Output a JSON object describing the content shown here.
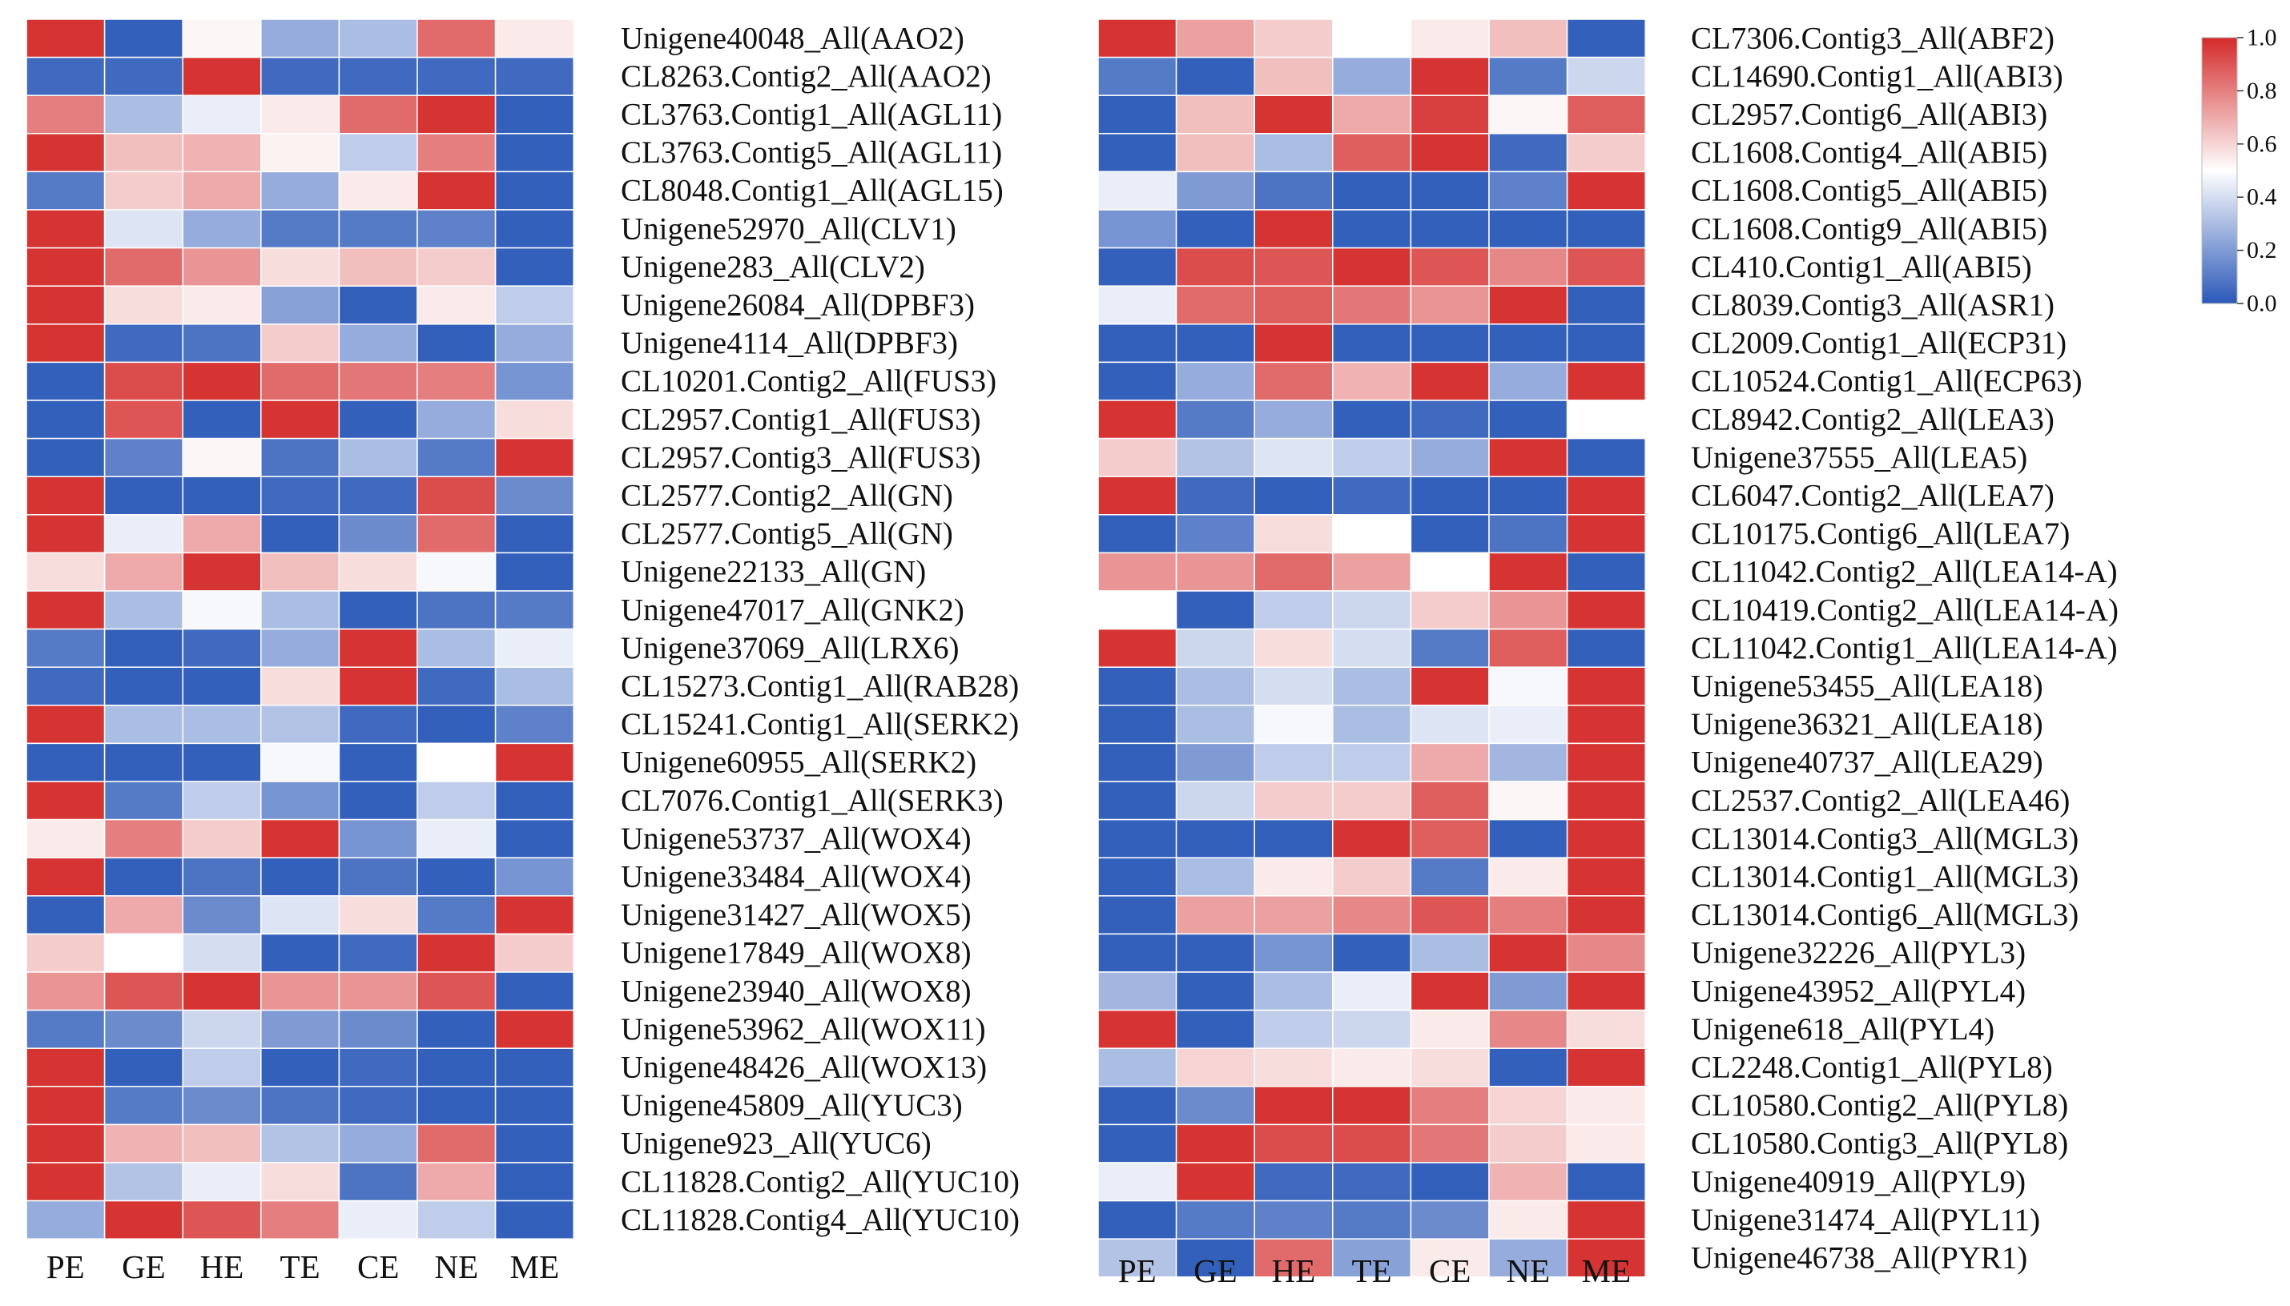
{
  "chart_data": {
    "type": "heatmap",
    "colormap": {
      "low": "#2b59b8",
      "mid": "#ffffff",
      "high": "#d42a2a",
      "range": [
        0.0,
        1.0
      ]
    },
    "colorbar": {
      "ticks": [
        "1.0",
        "0.8",
        "0.6",
        "0.4",
        "0.2",
        "0.0"
      ],
      "tick_values": [
        1.0,
        0.8,
        0.6,
        0.4,
        0.2,
        0.0
      ]
    },
    "panels": [
      {
        "name": "left",
        "columns": [
          "PE",
          "GE",
          "HE",
          "TE",
          "CE",
          "NE",
          "ME"
        ],
        "rows": [
          {
            "gene": "Unigene40048_All(AAO2)",
            "values": [
              0.98,
              0.02,
              0.52,
              0.25,
              0.3,
              0.85,
              0.55
            ]
          },
          {
            "gene": "CL8263.Contig2_All(AAO2)",
            "values": [
              0.05,
              0.05,
              0.98,
              0.05,
              0.05,
              0.05,
              0.05
            ]
          },
          {
            "gene": "CL3763.Contig1_All(AGL11)",
            "values": [
              0.8,
              0.3,
              0.45,
              0.55,
              0.85,
              0.98,
              0.02
            ]
          },
          {
            "gene": "CL3763.Contig5_All(AGL11)",
            "values": [
              0.98,
              0.65,
              0.68,
              0.53,
              0.35,
              0.8,
              0.02
            ]
          },
          {
            "gene": "CL8048.Contig1_All(AGL15)",
            "values": [
              0.1,
              0.62,
              0.7,
              0.25,
              0.55,
              0.98,
              0.02
            ]
          },
          {
            "gene": "Unigene52970_All(CLV1)",
            "values": [
              0.98,
              0.42,
              0.25,
              0.1,
              0.1,
              0.12,
              0.02
            ]
          },
          {
            "gene": "Unigene283_All(CLV2)",
            "values": [
              0.98,
              0.85,
              0.75,
              0.58,
              0.65,
              0.62,
              0.02
            ]
          },
          {
            "gene": "Unigene26084_All(DPBF3)",
            "values": [
              0.98,
              0.58,
              0.55,
              0.22,
              0.02,
              0.55,
              0.35
            ]
          },
          {
            "gene": "Unigene4114_All(DPBF3)",
            "values": [
              0.98,
              0.05,
              0.08,
              0.62,
              0.25,
              0.02,
              0.25
            ]
          },
          {
            "gene": "CL10201.Contig2_All(FUS3)",
            "values": [
              0.02,
              0.92,
              0.98,
              0.85,
              0.82,
              0.8,
              0.18
            ]
          },
          {
            "gene": "CL2957.Contig1_All(FUS3)",
            "values": [
              0.02,
              0.9,
              0.02,
              0.98,
              0.02,
              0.25,
              0.58
            ]
          },
          {
            "gene": "CL2957.Contig3_All(FUS3)",
            "values": [
              0.02,
              0.12,
              0.52,
              0.08,
              0.3,
              0.1,
              0.98
            ]
          },
          {
            "gene": "CL2577.Contig2_All(GN)",
            "values": [
              0.98,
              0.02,
              0.02,
              0.05,
              0.05,
              0.92,
              0.15
            ]
          },
          {
            "gene": "CL2577.Contig5_All(GN)",
            "values": [
              0.98,
              0.45,
              0.7,
              0.02,
              0.15,
              0.85,
              0.02
            ]
          },
          {
            "gene": "Unigene22133_All(GN)",
            "values": [
              0.58,
              0.7,
              0.98,
              0.65,
              0.58,
              0.48,
              0.02
            ]
          },
          {
            "gene": "Unigene47017_All(GNK2)",
            "values": [
              0.98,
              0.3,
              0.48,
              0.3,
              0.02,
              0.08,
              0.1
            ]
          },
          {
            "gene": "Unigene37069_All(LRX6)",
            "values": [
              0.1,
              0.02,
              0.05,
              0.25,
              0.98,
              0.3,
              0.45
            ]
          },
          {
            "gene": "CL15273.Contig1_All(RAB28)",
            "values": [
              0.05,
              0.02,
              0.02,
              0.58,
              0.98,
              0.05,
              0.3
            ]
          },
          {
            "gene": "CL15241.Contig1_All(SERK2)",
            "values": [
              0.98,
              0.3,
              0.3,
              0.32,
              0.05,
              0.02,
              0.12
            ]
          },
          {
            "gene": "Unigene60955_All(SERK2)",
            "values": [
              0.02,
              0.02,
              0.02,
              0.48,
              0.02,
              0.5,
              0.98
            ]
          },
          {
            "gene": "CL7076.Contig1_All(SERK3)",
            "values": [
              0.98,
              0.1,
              0.35,
              0.18,
              0.02,
              0.35,
              0.02
            ]
          },
          {
            "gene": "Unigene53737_All(WOX4)",
            "values": [
              0.55,
              0.8,
              0.62,
              0.98,
              0.18,
              0.45,
              0.02
            ]
          },
          {
            "gene": "Unigene33484_All(WOX4)",
            "values": [
              0.98,
              0.02,
              0.08,
              0.02,
              0.08,
              0.02,
              0.18
            ]
          },
          {
            "gene": "Unigene31427_All(WOX5)",
            "values": [
              0.02,
              0.7,
              0.15,
              0.42,
              0.58,
              0.1,
              0.98
            ]
          },
          {
            "gene": "Unigene17849_All(WOX8)",
            "values": [
              0.62,
              0.5,
              0.4,
              0.02,
              0.05,
              0.98,
              0.62
            ]
          },
          {
            "gene": "Unigene23940_All(WOX8)",
            "values": [
              0.75,
              0.9,
              0.98,
              0.75,
              0.75,
              0.9,
              0.02
            ]
          },
          {
            "gene": "Unigene53962_All(WOX11)",
            "values": [
              0.1,
              0.15,
              0.38,
              0.2,
              0.15,
              0.02,
              0.98
            ]
          },
          {
            "gene": "Unigene48426_All(WOX13)",
            "values": [
              0.98,
              0.02,
              0.35,
              0.02,
              0.05,
              0.02,
              0.02
            ]
          },
          {
            "gene": "Unigene45809_All(YUC3)",
            "values": [
              0.98,
              0.1,
              0.15,
              0.08,
              0.05,
              0.02,
              0.02
            ]
          },
          {
            "gene": "Unigene923_All(YUC6)",
            "values": [
              0.98,
              0.68,
              0.65,
              0.32,
              0.25,
              0.85,
              0.02
            ]
          },
          {
            "gene": "CL11828.Contig2_All(YUC10)",
            "values": [
              0.98,
              0.32,
              0.45,
              0.58,
              0.08,
              0.7,
              0.02
            ]
          },
          {
            "gene": "CL11828.Contig4_All(YUC10)",
            "values": [
              0.25,
              0.98,
              0.9,
              0.8,
              0.45,
              0.35,
              0.02
            ]
          }
        ]
      },
      {
        "name": "right",
        "columns": [
          "PE",
          "GE",
          "HE",
          "TE",
          "CE",
          "NE",
          "ME"
        ],
        "rows": [
          {
            "gene": "CL7306.Contig3_All(ABF2)",
            "values": [
              0.98,
              0.72,
              0.62,
              0.5,
              0.55,
              0.65,
              0.02
            ]
          },
          {
            "gene": "CL14690.Contig1_All(ABI3)",
            "values": [
              0.1,
              0.02,
              0.65,
              0.25,
              0.98,
              0.1,
              0.38
            ]
          },
          {
            "gene": "CL2957.Contig6_All(ABI3)",
            "values": [
              0.02,
              0.65,
              0.98,
              0.7,
              0.95,
              0.52,
              0.88
            ]
          },
          {
            "gene": "CL1608.Contig4_All(ABI5)",
            "values": [
              0.02,
              0.65,
              0.3,
              0.88,
              0.98,
              0.05,
              0.62
            ]
          },
          {
            "gene": "CL1608.Contig5_All(ABI5)",
            "values": [
              0.45,
              0.2,
              0.08,
              0.02,
              0.02,
              0.12,
              0.98
            ]
          },
          {
            "gene": "CL1608.Contig9_All(ABI5)",
            "values": [
              0.18,
              0.02,
              0.98,
              0.02,
              0.02,
              0.02,
              0.02
            ]
          },
          {
            "gene": "CL410.Contig1_All(ABI5)",
            "values": [
              0.02,
              0.92,
              0.9,
              0.98,
              0.9,
              0.78,
              0.9
            ]
          },
          {
            "gene": "CL8039.Contig3_All(ASR1)",
            "values": [
              0.45,
              0.85,
              0.88,
              0.82,
              0.75,
              0.98,
              0.02
            ]
          },
          {
            "gene": "CL2009.Contig1_All(ECP31)",
            "values": [
              0.02,
              0.02,
              0.98,
              0.02,
              0.02,
              0.02,
              0.02
            ]
          },
          {
            "gene": "CL10524.Contig1_All(ECP63)",
            "values": [
              0.02,
              0.25,
              0.85,
              0.68,
              0.98,
              0.25,
              0.98
            ]
          },
          {
            "gene": "CL8942.Contig2_All(LEA3)",
            "values": [
              0.98,
              0.1,
              0.25,
              0.02,
              0.05,
              0.02,
              0.5
            ]
          },
          {
            "gene": "Unigene37555_All(LEA5)",
            "values": [
              0.62,
              0.32,
              0.42,
              0.35,
              0.25,
              0.98,
              0.02
            ]
          },
          {
            "gene": "CL6047.Contig2_All(LEA7)",
            "values": [
              0.98,
              0.05,
              0.02,
              0.05,
              0.02,
              0.02,
              0.98
            ]
          },
          {
            "gene": "CL10175.Contig6_All(LEA7)",
            "values": [
              0.02,
              0.12,
              0.58,
              0.5,
              0.02,
              0.08,
              0.98
            ]
          },
          {
            "gene": "CL11042.Contig2_All(LEA14-A)",
            "values": [
              0.75,
              0.75,
              0.85,
              0.72,
              0.5,
              0.98,
              0.02
            ]
          },
          {
            "gene": "CL10419.Contig2_All(LEA14-A)",
            "values": [
              0.5,
              0.02,
              0.35,
              0.38,
              0.62,
              0.75,
              0.98
            ]
          },
          {
            "gene": "CL11042.Contig1_All(LEA14-A)",
            "values": [
              0.98,
              0.38,
              0.58,
              0.4,
              0.1,
              0.88,
              0.02
            ]
          },
          {
            "gene": "Unigene53455_All(LEA18)",
            "values": [
              0.02,
              0.3,
              0.4,
              0.3,
              0.98,
              0.48,
              0.98
            ]
          },
          {
            "gene": "Unigene36321_All(LEA18)",
            "values": [
              0.02,
              0.3,
              0.48,
              0.3,
              0.42,
              0.45,
              0.98
            ]
          },
          {
            "gene": "Unigene40737_All(LEA29)",
            "values": [
              0.02,
              0.2,
              0.35,
              0.35,
              0.7,
              0.28,
              0.98
            ]
          },
          {
            "gene": "CL2537.Contig2_All(LEA46)",
            "values": [
              0.02,
              0.38,
              0.62,
              0.62,
              0.88,
              0.52,
              0.98
            ]
          },
          {
            "gene": "CL13014.Contig3_All(MGL3)",
            "values": [
              0.02,
              0.02,
              0.02,
              0.98,
              0.88,
              0.02,
              0.98
            ]
          },
          {
            "gene": "CL13014.Contig1_All(MGL3)",
            "values": [
              0.02,
              0.3,
              0.55,
              0.62,
              0.1,
              0.55,
              0.98
            ]
          },
          {
            "gene": "CL13014.Contig6_All(MGL3)",
            "values": [
              0.02,
              0.72,
              0.72,
              0.78,
              0.9,
              0.8,
              0.98
            ]
          },
          {
            "gene": "Unigene32226_All(PYL3)",
            "values": [
              0.02,
              0.02,
              0.18,
              0.02,
              0.3,
              0.98,
              0.78
            ]
          },
          {
            "gene": "Unigene43952_All(PYL4)",
            "values": [
              0.28,
              0.02,
              0.3,
              0.45,
              0.98,
              0.2,
              0.98
            ]
          },
          {
            "gene": "Unigene618_All(PYL4)",
            "values": [
              0.98,
              0.02,
              0.35,
              0.38,
              0.55,
              0.78,
              0.58
            ]
          },
          {
            "gene": "CL2248.Contig1_All(PYL8)",
            "values": [
              0.3,
              0.6,
              0.58,
              0.55,
              0.58,
              0.02,
              0.98
            ]
          },
          {
            "gene": "CL10580.Contig2_All(PYL8)",
            "values": [
              0.02,
              0.15,
              0.98,
              0.98,
              0.8,
              0.6,
              0.55
            ]
          },
          {
            "gene": "CL10580.Contig3_All(PYL8)",
            "values": [
              0.02,
              0.98,
              0.92,
              0.92,
              0.82,
              0.62,
              0.55
            ]
          },
          {
            "gene": "Unigene40919_All(PYL9)",
            "values": [
              0.45,
              0.98,
              0.05,
              0.05,
              0.02,
              0.68,
              0.02
            ]
          },
          {
            "gene": "Unigene31474_All(PYL11)",
            "values": [
              0.02,
              0.1,
              0.12,
              0.1,
              0.15,
              0.55,
              0.98
            ]
          },
          {
            "gene": "Unigene46738_All(PYR1)",
            "values": [
              0.32,
              0.02,
              0.85,
              0.22,
              0.55,
              0.25,
              0.98
            ]
          }
        ]
      }
    ]
  }
}
